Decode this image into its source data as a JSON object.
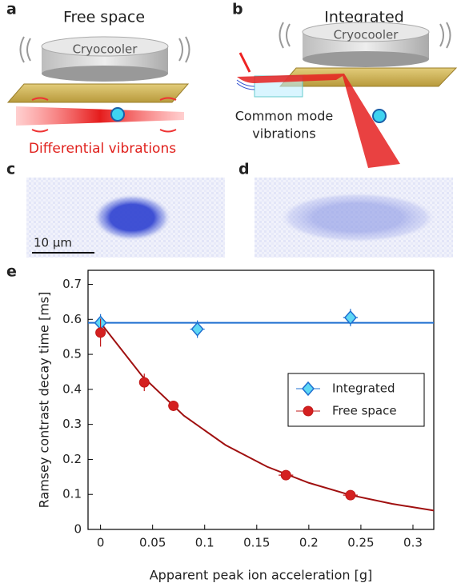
{
  "panels": {
    "a": {
      "label": "a",
      "title": "Free space",
      "device": "Cryocooler",
      "caption": "Differential vibrations"
    },
    "b": {
      "label": "b",
      "title": "Integrated",
      "device": "Cryocooler",
      "caption_lines": [
        "Common mode",
        "vibrations"
      ]
    },
    "c": {
      "label": "c",
      "scale": "10 μm"
    },
    "d": {
      "label": "d"
    },
    "e": {
      "label": "e"
    }
  },
  "chart_data": {
    "type": "scatter",
    "xlabel": "Apparent peak ion acceleration [g]",
    "ylabel": "Ramsey contrast decay time [ms]",
    "xlim": [
      -0.012,
      0.32
    ],
    "ylim": [
      0,
      0.74
    ],
    "xticks": [
      0,
      0.05,
      0.1,
      0.15,
      0.2,
      0.25,
      0.3
    ],
    "yticks": [
      0,
      0.1,
      0.2,
      0.3,
      0.4,
      0.5,
      0.6,
      0.7
    ],
    "legend": "right",
    "series": [
      {
        "name": "Integrated",
        "color": "#1f6fd0",
        "fill": "#5fd8f5",
        "marker": "diamond",
        "x": [
          0,
          0.093,
          0.24
        ],
        "values": [
          0.59,
          0.572,
          0.605
        ],
        "xerr": [
          0.003,
          0.007,
          0.007
        ],
        "yerr": [
          0.025,
          0.025,
          0.025
        ]
      },
      {
        "name": "Free space",
        "color": "#c01818",
        "fill": "#d42020",
        "marker": "circle",
        "x": [
          0,
          0.042,
          0.07,
          0.178,
          0.24
        ],
        "values": [
          0.562,
          0.42,
          0.353,
          0.155,
          0.098
        ],
        "xerr": [
          0.003,
          0.004,
          0.005,
          0.007,
          0.007
        ],
        "yerr": [
          0.04,
          0.025,
          0.01,
          0.01,
          0.008
        ]
      }
    ],
    "lines": [
      {
        "color": "#1f6fd0",
        "x": [
          -0.012,
          0.32
        ],
        "values": [
          0.59,
          0.59
        ]
      },
      {
        "color": "#a01010",
        "x": [
          0,
          0.04,
          0.08,
          0.12,
          0.16,
          0.2,
          0.24,
          0.28,
          0.32
        ],
        "values": [
          0.59,
          0.438,
          0.325,
          0.241,
          0.179,
          0.133,
          0.098,
          0.073,
          0.054
        ]
      }
    ]
  }
}
